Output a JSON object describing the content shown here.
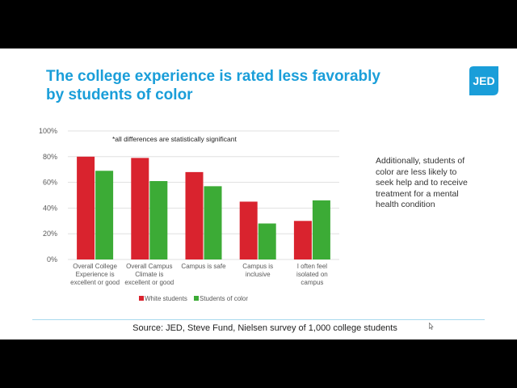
{
  "slide": {
    "title_lines": [
      "The college experience is rated less favorably",
      "by students of color"
    ],
    "logo_text": "JED",
    "note_lines": [
      "Additionally, students of",
      "color are less likely to",
      "seek help and to receive",
      "treatment for a mental",
      "health condition"
    ],
    "source": "Source: JED, Steve Fund, Nielsen survey of 1,000 college students"
  },
  "colors": {
    "title": "#1a9ed9",
    "logo": "#1a9ed9",
    "series_white": "#d9232e",
    "series_color": "#3cab36",
    "grid": "#d9d9d9"
  },
  "chart_data": {
    "type": "bar",
    "annotation": "*all differences are statistically significant",
    "categories": [
      [
        "Overall College",
        "Experience is",
        "excellent or good"
      ],
      [
        "Overall Campus",
        "Climate is",
        "excellent or good"
      ],
      [
        "Campus is safe"
      ],
      [
        "Campus is",
        "inclusive"
      ],
      [
        "I often feel",
        "isolated on",
        "campus"
      ]
    ],
    "series": [
      {
        "name": "White students",
        "values": [
          80,
          79,
          68,
          45,
          30
        ]
      },
      {
        "name": "Students of color",
        "values": [
          69,
          61,
          57,
          28,
          46
        ]
      }
    ],
    "yticks": [
      "0%",
      "20%",
      "40%",
      "60%",
      "80%",
      "100%"
    ],
    "ylim": [
      0,
      100
    ],
    "grid": true,
    "legend_position": "bottom"
  }
}
